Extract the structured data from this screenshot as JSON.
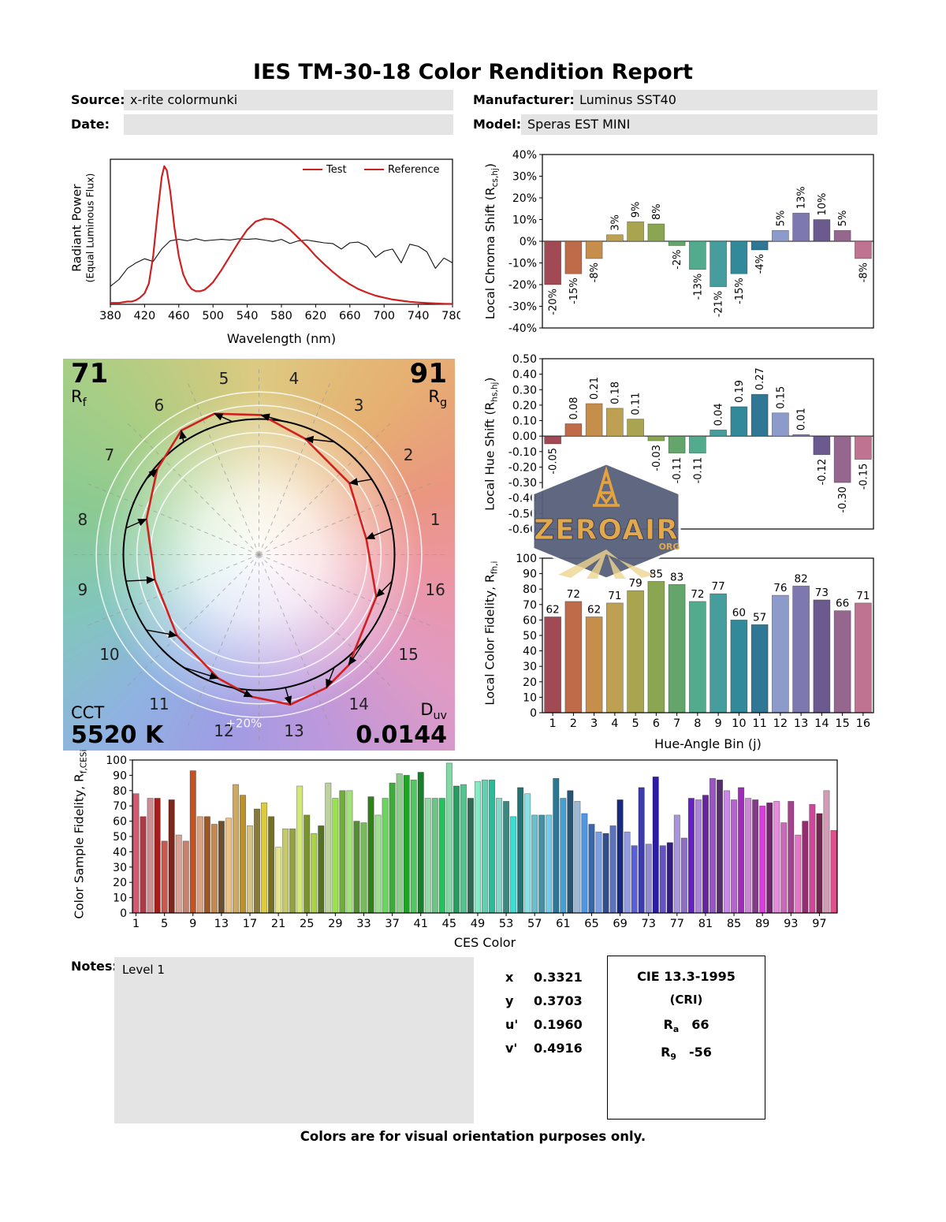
{
  "page": {
    "title": "IES TM-30-18 Color Rendition Report",
    "footer": "Colors are for visual orientation purposes only."
  },
  "header": {
    "source": {
      "label": "Source:",
      "value": "x-rite colormunki"
    },
    "date": {
      "label": "Date:",
      "value": ""
    },
    "manufacturer": {
      "label": "Manufacturer:",
      "value": "Luminus SST40"
    },
    "model": {
      "label": "Model:",
      "value": "Speras EST MINI"
    }
  },
  "cvg": {
    "rf_value": "71",
    "rf_label_main": "R",
    "rf_label_sub": "f",
    "rg_value": "91",
    "rg_label_main": "R",
    "rg_label_sub": "g",
    "cct_label": "CCT",
    "cct_value": "5520 K",
    "duv_label_main": "D",
    "duv_label_sub": "uv",
    "duv_value": "0.0144",
    "plus20_label": "+20%",
    "bin_labels": [
      "1",
      "2",
      "3",
      "4",
      "5",
      "6",
      "7",
      "8",
      "9",
      "10",
      "11",
      "12",
      "13",
      "14",
      "15",
      "16"
    ]
  },
  "watermark": {
    "text": "ZEROAIR",
    "suffix": "ORG"
  },
  "notes": {
    "label": "Notes:",
    "value": "Level 1"
  },
  "chromaticity": {
    "rows": [
      {
        "label": "x",
        "value": "0.3321"
      },
      {
        "label": "y",
        "value": "0.3703"
      },
      {
        "label": "u'",
        "value": "0.1960"
      },
      {
        "label": "v'",
        "value": "0.4916"
      }
    ]
  },
  "cie_box": {
    "title": "CIE 13.3-1995",
    "subtitle": "(CRI)",
    "ra_main": "R",
    "ra_sub": "a",
    "ra_value": "66",
    "r9_main": "R",
    "r9_sub": "9",
    "r9_value": "-56"
  },
  "chart_data": [
    {
      "id": "spd",
      "type": "line",
      "xlabel": "Wavelength (nm)",
      "ylabel_line1": "Radiant Power",
      "ylabel_line2": "(Equal Luminous Flux)",
      "xlim": [
        380,
        780
      ],
      "ylim": [
        0,
        1.05
      ],
      "xticks": [
        380,
        420,
        460,
        500,
        540,
        580,
        620,
        660,
        700,
        740,
        780
      ],
      "legend": [
        {
          "label": "Test",
          "color": "#cc2222"
        },
        {
          "label": "Reference",
          "color": "#cc2222"
        }
      ],
      "series": [
        {
          "name": "Reference",
          "color": "#111111",
          "width": 1.1,
          "x": [
            380,
            390,
            400,
            410,
            420,
            430,
            440,
            450,
            460,
            470,
            480,
            490,
            500,
            510,
            520,
            530,
            540,
            550,
            560,
            570,
            580,
            590,
            600,
            610,
            620,
            630,
            640,
            650,
            660,
            670,
            680,
            690,
            700,
            710,
            720,
            730,
            740,
            750,
            760,
            770,
            780
          ],
          "y": [
            0.13,
            0.18,
            0.26,
            0.3,
            0.33,
            0.31,
            0.4,
            0.46,
            0.47,
            0.46,
            0.475,
            0.46,
            0.465,
            0.47,
            0.465,
            0.475,
            0.47,
            0.475,
            0.465,
            0.455,
            0.47,
            0.44,
            0.46,
            0.465,
            0.455,
            0.445,
            0.44,
            0.4,
            0.445,
            0.45,
            0.42,
            0.34,
            0.385,
            0.4,
            0.3,
            0.435,
            0.42,
            0.38,
            0.26,
            0.335,
            0.3
          ]
        },
        {
          "name": "Test",
          "color": "#cc2222",
          "width": 2.2,
          "x": [
            380,
            390,
            400,
            405,
            410,
            415,
            420,
            425,
            430,
            435,
            440,
            443,
            446,
            450,
            455,
            460,
            465,
            470,
            475,
            480,
            485,
            490,
            495,
            500,
            510,
            520,
            530,
            540,
            550,
            560,
            570,
            580,
            590,
            600,
            610,
            620,
            630,
            640,
            650,
            660,
            670,
            680,
            690,
            700,
            710,
            720,
            730,
            740,
            750,
            760,
            770,
            780
          ],
          "y": [
            0.01,
            0.01,
            0.02,
            0.02,
            0.03,
            0.05,
            0.08,
            0.15,
            0.35,
            0.65,
            0.92,
            1.0,
            0.97,
            0.82,
            0.55,
            0.35,
            0.22,
            0.15,
            0.11,
            0.095,
            0.095,
            0.105,
            0.13,
            0.16,
            0.25,
            0.35,
            0.45,
            0.54,
            0.6,
            0.62,
            0.615,
            0.585,
            0.54,
            0.48,
            0.42,
            0.35,
            0.29,
            0.235,
            0.185,
            0.145,
            0.11,
            0.085,
            0.063,
            0.048,
            0.035,
            0.026,
            0.018,
            0.013,
            0.009,
            0.006,
            0.004,
            0.003
          ]
        }
      ]
    },
    {
      "id": "chroma_shift",
      "type": "bar",
      "ylabel_main": "Local Chroma Shift (R",
      "ylabel_sub": "cs,hj",
      "ylabel_close": ")",
      "categories": [
        1,
        2,
        3,
        4,
        5,
        6,
        7,
        8,
        9,
        10,
        11,
        12,
        13,
        14,
        15,
        16
      ],
      "values": [
        -20,
        -15,
        -8,
        3,
        9,
        8,
        -2,
        -13,
        -21,
        -15,
        -4,
        5,
        13,
        10,
        5,
        -8
      ],
      "value_labels": [
        "-20%",
        "-15%",
        "-8%",
        "3%",
        "9%",
        "8%",
        "-2%",
        "-13%",
        "-21%",
        "-15%",
        "-4%",
        "5%",
        "13%",
        "10%",
        "5%",
        "-8%"
      ],
      "ylim": [
        -40,
        40
      ],
      "ytick_step": 10,
      "ytick_format": "percent",
      "bar_colors": [
        "#a14a54",
        "#bf6b4a",
        "#c68e4b",
        "#bda051",
        "#a9a44f",
        "#8aa653",
        "#63a56a",
        "#52ab8c",
        "#459d9d",
        "#32899a",
        "#2f7795",
        "#8d9bcb",
        "#7d78b0",
        "#6a5a8e",
        "#95678f",
        "#bf7390"
      ]
    },
    {
      "id": "hue_shift",
      "type": "bar",
      "ylabel_main": "Local Hue Shift (R",
      "ylabel_sub": "hs,hj",
      "ylabel_close": ")",
      "categories": [
        1,
        2,
        3,
        4,
        5,
        6,
        7,
        8,
        9,
        10,
        11,
        12,
        13,
        14,
        15,
        16
      ],
      "values": [
        -0.05,
        0.08,
        0.21,
        0.18,
        0.11,
        -0.03,
        -0.11,
        -0.11,
        0.04,
        0.19,
        0.27,
        0.15,
        0.01,
        -0.12,
        -0.3,
        -0.15
      ],
      "value_labels": [
        "-0.05",
        "0.08",
        "0.21",
        "0.18",
        "0.11",
        "-0.03",
        "-0.11",
        "-0.11",
        "0.04",
        "0.19",
        "0.27",
        "0.15",
        "0.01",
        "-0.12",
        "-0.30",
        "-0.15"
      ],
      "ylim": [
        -0.6,
        0.5
      ],
      "ytick_step": 0.1,
      "ytick_format": "fixed2",
      "bar_colors": [
        "#a14a54",
        "#bf6b4a",
        "#c68e4b",
        "#bda051",
        "#a9a44f",
        "#8aa653",
        "#63a56a",
        "#52ab8c",
        "#459d9d",
        "#32899a",
        "#2f7795",
        "#8d9bcb",
        "#7d78b0",
        "#6a5a8e",
        "#95678f",
        "#bf7390"
      ]
    },
    {
      "id": "local_fidelity",
      "type": "bar",
      "ylabel_main": "Local Color Fidelity, R",
      "ylabel_sub": "fh,i",
      "ylabel_close": "",
      "categories": [
        1,
        2,
        3,
        4,
        5,
        6,
        7,
        8,
        9,
        10,
        11,
        12,
        13,
        14,
        15,
        16
      ],
      "values": [
        62,
        72,
        62,
        71,
        79,
        85,
        83,
        72,
        77,
        60,
        57,
        76,
        82,
        73,
        66,
        71
      ],
      "value_labels": [
        "62",
        "72",
        "62",
        "71",
        "79",
        "85",
        "83",
        "72",
        "77",
        "60",
        "57",
        "76",
        "82",
        "73",
        "66",
        "71"
      ],
      "ylim": [
        0,
        100
      ],
      "ytick_step": 10,
      "ytick_format": "int",
      "xticks": [
        1,
        2,
        3,
        4,
        5,
        6,
        7,
        8,
        9,
        10,
        11,
        12,
        13,
        14,
        15,
        16
      ],
      "xlabel": "Hue-Angle Bin (j)",
      "bar_colors": [
        "#a14a54",
        "#bf6b4a",
        "#c68e4b",
        "#bda051",
        "#a9a44f",
        "#8aa653",
        "#63a56a",
        "#52ab8c",
        "#459d9d",
        "#32899a",
        "#2f7795",
        "#8d9bcb",
        "#7d78b0",
        "#6a5a8e",
        "#95678f",
        "#bf7390"
      ]
    },
    {
      "id": "ces_fidelity",
      "type": "bar",
      "ylabel_main": "Color Sample Fidelity, R",
      "ylabel_sub": "f,CESi",
      "ylabel_close": "",
      "values": [
        78,
        63,
        75,
        75,
        47,
        74,
        51,
        47,
        93,
        63,
        63,
        58,
        60,
        62,
        84,
        77,
        57,
        68,
        72,
        63,
        43,
        55,
        55,
        83,
        64,
        52,
        57,
        85,
        75,
        80,
        80,
        60,
        59,
        76,
        64,
        75,
        85,
        91,
        90,
        87,
        92,
        75,
        75,
        75,
        98,
        83,
        84,
        75,
        86,
        87,
        87,
        75,
        73,
        63,
        82,
        78,
        64,
        64,
        64,
        88,
        75,
        80,
        73,
        65,
        58,
        53,
        52,
        57,
        74,
        53,
        44,
        82,
        45,
        89,
        44,
        46,
        64,
        49,
        75,
        74,
        77,
        88,
        87,
        80,
        74,
        82,
        75,
        74,
        70,
        72,
        73,
        59,
        73,
        51,
        60,
        71,
        65,
        80,
        54
      ],
      "ylim": [
        0,
        100
      ],
      "ytick_step": 10,
      "ytick_format": "int",
      "xticks": [
        1,
        5,
        9,
        13,
        17,
        21,
        25,
        29,
        33,
        37,
        41,
        45,
        49,
        53,
        57,
        61,
        65,
        69,
        73,
        77,
        81,
        85,
        89,
        93,
        97
      ],
      "xlabel": "CES Color",
      "bar_colors_gen": {
        "hue_start": 350,
        "hue_span": 345,
        "sat_cycle": [
          62,
          48,
          40,
          70,
          52
        ],
        "light_cycle": [
          60,
          45,
          68,
          38,
          55,
          30,
          72
        ]
      }
    }
  ]
}
